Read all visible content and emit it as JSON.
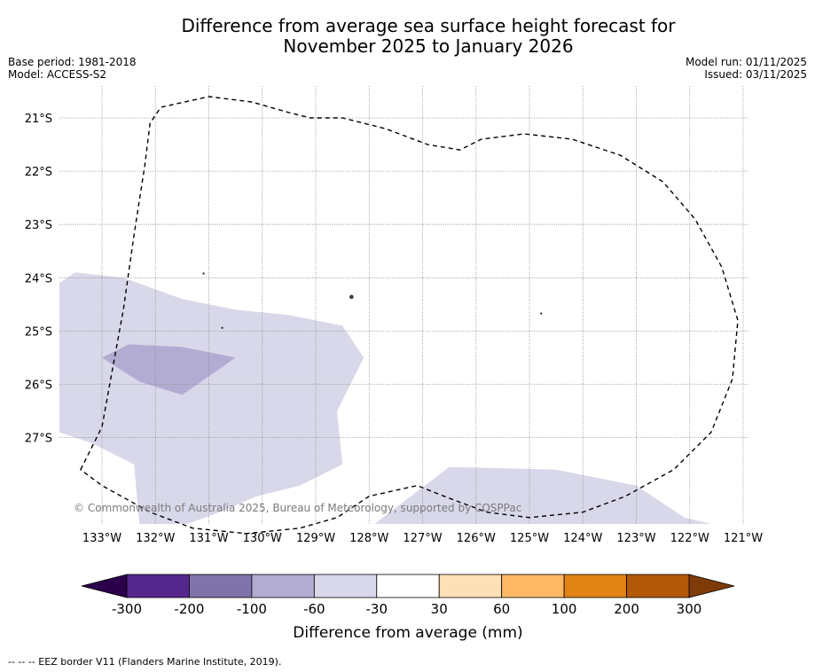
{
  "title": {
    "line1": "Difference from average sea surface height forecast for",
    "line2": "November 2025 to January 2026"
  },
  "meta_left": {
    "base_period": "Base period: 1981-2018",
    "model": "Model: ACCESS-S2"
  },
  "meta_right": {
    "model_run": "Model run: 01/11/2025",
    "issued": "Issued: 03/11/2025"
  },
  "map": {
    "lat_labels": [
      "21°S",
      "22°S",
      "23°S",
      "24°S",
      "25°S",
      "26°S",
      "27°S"
    ],
    "lon_labels": [
      "133°W",
      "132°W",
      "131°W",
      "130°W",
      "129°W",
      "128°W",
      "127°W",
      "126°W",
      "125°W",
      "124°W",
      "123°W",
      "122°W",
      "121°W"
    ],
    "lat_values": [
      -21,
      -22,
      -23,
      -24,
      -25,
      -26,
      -27
    ],
    "lon_values": [
      -133,
      -132,
      -131,
      -130,
      -129,
      -128,
      -127,
      -126,
      -125,
      -124,
      -123,
      -122,
      -121
    ],
    "copyright": "© Commonwealth of Australia 2025, Bureau of Meteorology, supported by COSPPac",
    "eez_border": [
      [
        -133.4,
        -27.6
      ],
      [
        -133.0,
        -26.8
      ],
      [
        -132.8,
        -25.7
      ],
      [
        -132.6,
        -24.6
      ],
      [
        -132.4,
        -23.2
      ],
      [
        -132.2,
        -21.9
      ],
      [
        -132.1,
        -21.1
      ],
      [
        -131.9,
        -20.8
      ],
      [
        -131.0,
        -20.6
      ],
      [
        -130.2,
        -20.7
      ],
      [
        -129.5,
        -20.9
      ],
      [
        -129.1,
        -21.0
      ],
      [
        -128.5,
        -21.0
      ],
      [
        -127.7,
        -21.2
      ],
      [
        -126.9,
        -21.5
      ],
      [
        -126.3,
        -21.6
      ],
      [
        -125.9,
        -21.4
      ],
      [
        -125.1,
        -21.3
      ],
      [
        -124.2,
        -21.4
      ],
      [
        -123.3,
        -21.7
      ],
      [
        -122.5,
        -22.2
      ],
      [
        -121.9,
        -22.9
      ],
      [
        -121.4,
        -23.8
      ],
      [
        -121.1,
        -24.8
      ],
      [
        -121.2,
        -25.9
      ],
      [
        -121.6,
        -26.9
      ],
      [
        -122.3,
        -27.6
      ],
      [
        -123.2,
        -28.1
      ],
      [
        -124.0,
        -28.4
      ],
      [
        -125.0,
        -28.5
      ],
      [
        -125.8,
        -28.4
      ],
      [
        -126.6,
        -28.1
      ],
      [
        -127.1,
        -27.9
      ],
      [
        -128.0,
        -28.1
      ],
      [
        -128.6,
        -28.5
      ],
      [
        -129.3,
        -28.7
      ],
      [
        -130.3,
        -28.8
      ],
      [
        -131.3,
        -28.7
      ],
      [
        -132.1,
        -28.4
      ],
      [
        -133.0,
        -27.9
      ],
      [
        -133.4,
        -27.6
      ]
    ],
    "anomaly_regions": [
      {
        "category": "-60 to -30",
        "color": "#d8d8ea",
        "polygon": [
          [
            -133.8,
            -24.1
          ],
          [
            -133.5,
            -23.9
          ],
          [
            -132.6,
            -24.0
          ],
          [
            -131.5,
            -24.4
          ],
          [
            -130.5,
            -24.6
          ],
          [
            -129.5,
            -24.7
          ],
          [
            -128.5,
            -24.9
          ],
          [
            -128.1,
            -25.5
          ],
          [
            -128.6,
            -26.5
          ],
          [
            -128.5,
            -27.5
          ],
          [
            -129.3,
            -27.9
          ],
          [
            -130.1,
            -28.1
          ],
          [
            -130.8,
            -28.4
          ],
          [
            -131.4,
            -28.8
          ],
          [
            -132.3,
            -28.8
          ],
          [
            -132.4,
            -27.5
          ],
          [
            -133.2,
            -27.1
          ],
          [
            -133.8,
            -26.9
          ]
        ]
      },
      {
        "category": "-100 to -60",
        "color": "#b2acd2",
        "polygon": [
          [
            -133.0,
            -25.5
          ],
          [
            -132.5,
            -25.25
          ],
          [
            -131.5,
            -25.3
          ],
          [
            -130.5,
            -25.5
          ],
          [
            -131.5,
            -26.2
          ],
          [
            -132.3,
            -25.95
          ]
        ]
      },
      {
        "category": "-60 to -30",
        "color": "#d8d8ea",
        "polygon": [
          [
            -127.9,
            -28.8
          ],
          [
            -126.5,
            -27.55
          ],
          [
            -124.5,
            -27.6
          ],
          [
            -123.0,
            -27.9
          ],
          [
            -122.1,
            -28.5
          ],
          [
            -121.6,
            -28.8
          ]
        ]
      }
    ],
    "islands": [
      {
        "lon": -128.33,
        "lat": -24.36
      },
      {
        "lon": -130.75,
        "lat": -24.94
      },
      {
        "lon": -124.78,
        "lat": -24.67
      },
      {
        "lon": -131.1,
        "lat": -23.92
      }
    ]
  },
  "colorbar": {
    "label": "Difference from average (mm)",
    "tick_labels": [
      "-300",
      "-200",
      "-100",
      "-60",
      "-30",
      "30",
      "60",
      "100",
      "200",
      "300"
    ],
    "colors": [
      "#54278f",
      "#8073ac",
      "#b2acd2",
      "#d8d8ea",
      "#ffffff",
      "#fee0b6",
      "#fdb863",
      "#e08214",
      "#b35806"
    ],
    "extend_low_color": "#2d004b",
    "extend_high_color": "#7f3b08"
  },
  "footnote": "--  --  -- EEZ border V11 (Flanders Marine Institute, 2019)."
}
